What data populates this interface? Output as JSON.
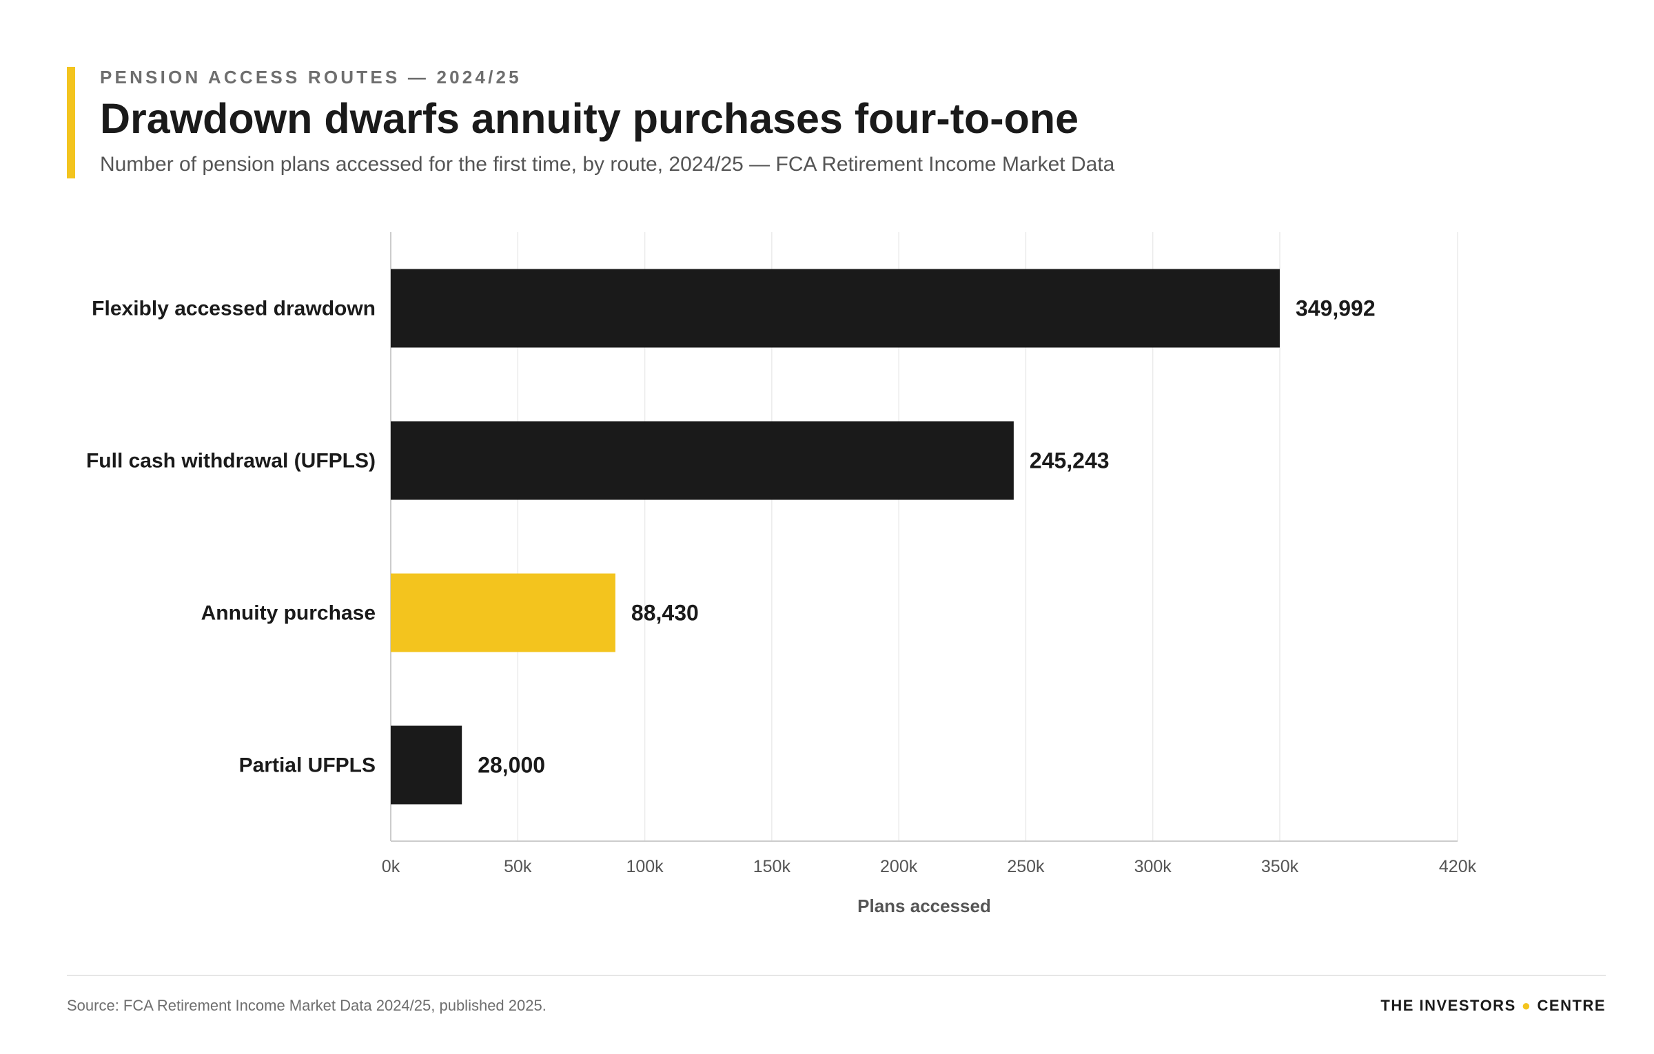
{
  "header": {
    "eyebrow": "PENSION ACCESS ROUTES — 2024/25",
    "title": "Drawdown dwarfs annuity purchases four-to-one",
    "subtitle": "Number of pension plans accessed for the first time, by route, 2024/25 — FCA Retirement Income Market Data"
  },
  "colors": {
    "accent": "#f3c41e",
    "bar_default": "#1a1a1a",
    "bar_highlight": "#f3c41e",
    "grid": "#ebebeb",
    "axis": "#cccccc"
  },
  "chart_data": {
    "type": "bar",
    "orientation": "horizontal",
    "title": "Drawdown dwarfs annuity purchases four-to-one",
    "subtitle": "Number of pension plans accessed for the first time, by route, 2024/25 — FCA Retirement Income Market Data",
    "xlabel": "Plans accessed",
    "ylabel": "",
    "categories": [
      "Flexibly accessed drawdown",
      "Full cash withdrawal (UFPLS)",
      "Annuity purchase",
      "Partial UFPLS"
    ],
    "values": [
      349992,
      245243,
      88430,
      28000
    ],
    "value_labels": [
      "349,992",
      "245,243",
      "88,430",
      "28,000"
    ],
    "highlight": [
      "no",
      "no",
      "yes",
      "no"
    ],
    "xlim": [
      0,
      420000
    ],
    "xticks": [
      0,
      50000,
      100000,
      150000,
      200000,
      250000,
      300000,
      350000,
      420000
    ],
    "xtick_labels": [
      "0k",
      "50k",
      "100k",
      "150k",
      "200k",
      "250k",
      "300k",
      "350k",
      "420k"
    ],
    "grid": "vertical",
    "legend": "none"
  },
  "footer": {
    "source": "Source: FCA Retirement Income Market Data 2024/25, published 2025.",
    "brand_left": "THE INVESTORS",
    "brand_dot": "●",
    "brand_right": "CENTRE"
  }
}
